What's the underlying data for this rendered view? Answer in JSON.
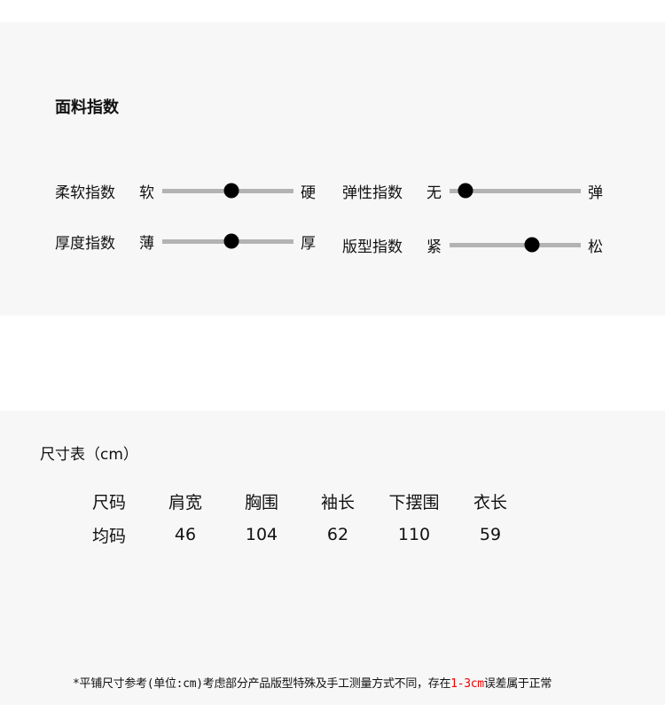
{
  "fabric": {
    "title": "面料指数",
    "sliders": [
      {
        "label": "柔软指数",
        "min": "软",
        "max": "硬",
        "value": 0.53
      },
      {
        "label": "弹性指数",
        "min": "无",
        "max": "弹",
        "value": 0.12
      },
      {
        "label": "厚度指数",
        "min": "薄",
        "max": "厚",
        "value": 0.53
      },
      {
        "label": "版型指数",
        "min": "紧",
        "max": "松",
        "value": 0.63
      }
    ]
  },
  "size": {
    "title": "尺寸表（cm）",
    "headers": [
      "尺码",
      "肩宽",
      "胸围",
      "袖长",
      "下摆围",
      "衣长"
    ],
    "rows": [
      [
        "均码",
        "46",
        "104",
        "62",
        "110",
        "59"
      ]
    ],
    "note_pre": "*平铺尺寸参考(单位:cm)考虑部分产品版型特殊及手工测量方式不同，存在",
    "note_highlight": "1-3cm",
    "note_post": "误差属于正常",
    "highlight_color": "#ee0000"
  }
}
